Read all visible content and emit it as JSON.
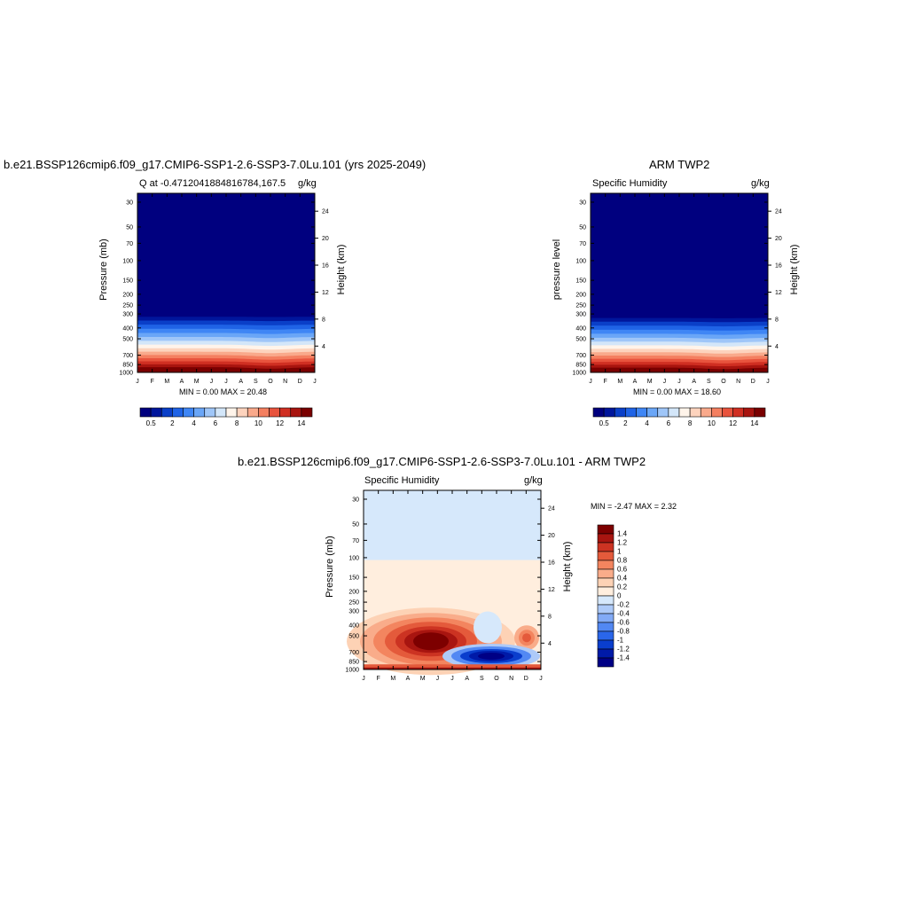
{
  "palette_abs": [
    "#00007f",
    "#00169c",
    "#0a3fc8",
    "#1f63e6",
    "#3f86f5",
    "#6aa6f7",
    "#9fc6f8",
    "#d3e6f9",
    "#fff4ea",
    "#fdd3bd",
    "#f9a98b",
    "#f47f60",
    "#e8533d",
    "#d02f22",
    "#a8140f",
    "#7a0000"
  ],
  "palette_diff": [
    "#000085",
    "#001aa8",
    "#0a3ecd",
    "#2a66ea",
    "#5288f3",
    "#82aaf6",
    "#aecaf8",
    "#d6e8fb",
    "#ffeede",
    "#fdd2b5",
    "#f9ac8a",
    "#f3855f",
    "#e45a3b",
    "#cc3322",
    "#a81510",
    "#7d0000"
  ],
  "panels": [
    {
      "title": "b.e21.BSSP126cmip6.f09_g17.CMIP6-SSP1-2.6-SSP3-7.0Lu.101 (yrs 2025-2049)",
      "left_label": "Q at -0.4712041884816784,167.5",
      "right_label": "g/kg",
      "ylabel": "Pressure (mb)",
      "y2label": "Height (km)",
      "minmax": "MIN =   0.00 MAX =  20.48"
    },
    {
      "title": "ARM TWP2",
      "left_label": "Specific Humidity",
      "right_label": "g/kg",
      "ylabel": "pressure level",
      "y2label": "Height (km)",
      "minmax": "MIN =   0.00 MAX =  18.60"
    },
    {
      "title": "b.e21.BSSP126cmip6.f09_g17.CMIP6-SSP1-2.6-SSP3-7.0Lu.101 - ARM TWP2",
      "left_label": "Specific Humidity",
      "right_label": "g/kg",
      "ylabel": "Pressure (mb)",
      "y2label": "Height (km)",
      "minmax": "MIN =  -2.47 MAX =   2.32"
    }
  ],
  "chart_data": [
    {
      "type": "heatmap",
      "title": "b.e21.BSSP126cmip6.f09_g17.CMIP6-SSP1-2.6-SSP3-7.0Lu.101 (yrs 2025-2049)",
      "variable": "Q at -0.4712041884816784,167.5",
      "units": "g/kg",
      "x_ticks": [
        "J",
        "F",
        "M",
        "A",
        "M",
        "J",
        "J",
        "A",
        "S",
        "O",
        "N",
        "D",
        "J"
      ],
      "y_ticks": [
        "30",
        "50",
        "70",
        "100",
        "150",
        "200",
        "250",
        "300",
        "400",
        "500",
        "700",
        "850",
        "1000"
      ],
      "y2_ticks": [
        "24",
        "20",
        "16",
        "12",
        "8",
        "4"
      ],
      "ylim": [
        1000,
        25
      ],
      "colorbar_ticks": [
        "0.5",
        "2",
        "4",
        "6",
        "8",
        "10",
        "12",
        "14"
      ],
      "min": 0.0,
      "max": 20.48
    },
    {
      "type": "heatmap",
      "title": "ARM TWP2",
      "variable": "Specific Humidity",
      "units": "g/kg",
      "x_ticks": [
        "J",
        "F",
        "M",
        "A",
        "M",
        "J",
        "J",
        "A",
        "S",
        "O",
        "N",
        "D",
        "J"
      ],
      "y_ticks": [
        "30",
        "50",
        "70",
        "100",
        "150",
        "200",
        "250",
        "300",
        "400",
        "500",
        "700",
        "850",
        "1000"
      ],
      "y2_ticks": [
        "24",
        "20",
        "16",
        "12",
        "8",
        "4"
      ],
      "ylim": [
        1000,
        25
      ],
      "colorbar_ticks": [
        "0.5",
        "2",
        "4",
        "6",
        "8",
        "10",
        "12",
        "14"
      ],
      "min": 0.0,
      "max": 18.6
    },
    {
      "type": "heatmap",
      "title": "b.e21.BSSP126cmip6.f09_g17.CMIP6-SSP1-2.6-SSP3-7.0Lu.101 - ARM TWP2",
      "variable": "Specific Humidity",
      "units": "g/kg",
      "x_ticks": [
        "J",
        "F",
        "M",
        "A",
        "M",
        "J",
        "J",
        "A",
        "S",
        "O",
        "N",
        "D",
        "J"
      ],
      "y_ticks": [
        "30",
        "50",
        "70",
        "100",
        "150",
        "200",
        "250",
        "300",
        "400",
        "500",
        "700",
        "850",
        "1000"
      ],
      "y2_ticks": [
        "24",
        "20",
        "16",
        "12",
        "8",
        "4"
      ],
      "ylim": [
        1000,
        25
      ],
      "colorbar_ticks": [
        "1.4",
        "1.2",
        "1",
        "0.8",
        "0.6",
        "0.4",
        "0.2",
        "0",
        "-0.2",
        "-0.4",
        "-0.6",
        "-0.8",
        "-1",
        "-1.2",
        "-1.4"
      ],
      "min": -2.47,
      "max": 2.32
    }
  ]
}
